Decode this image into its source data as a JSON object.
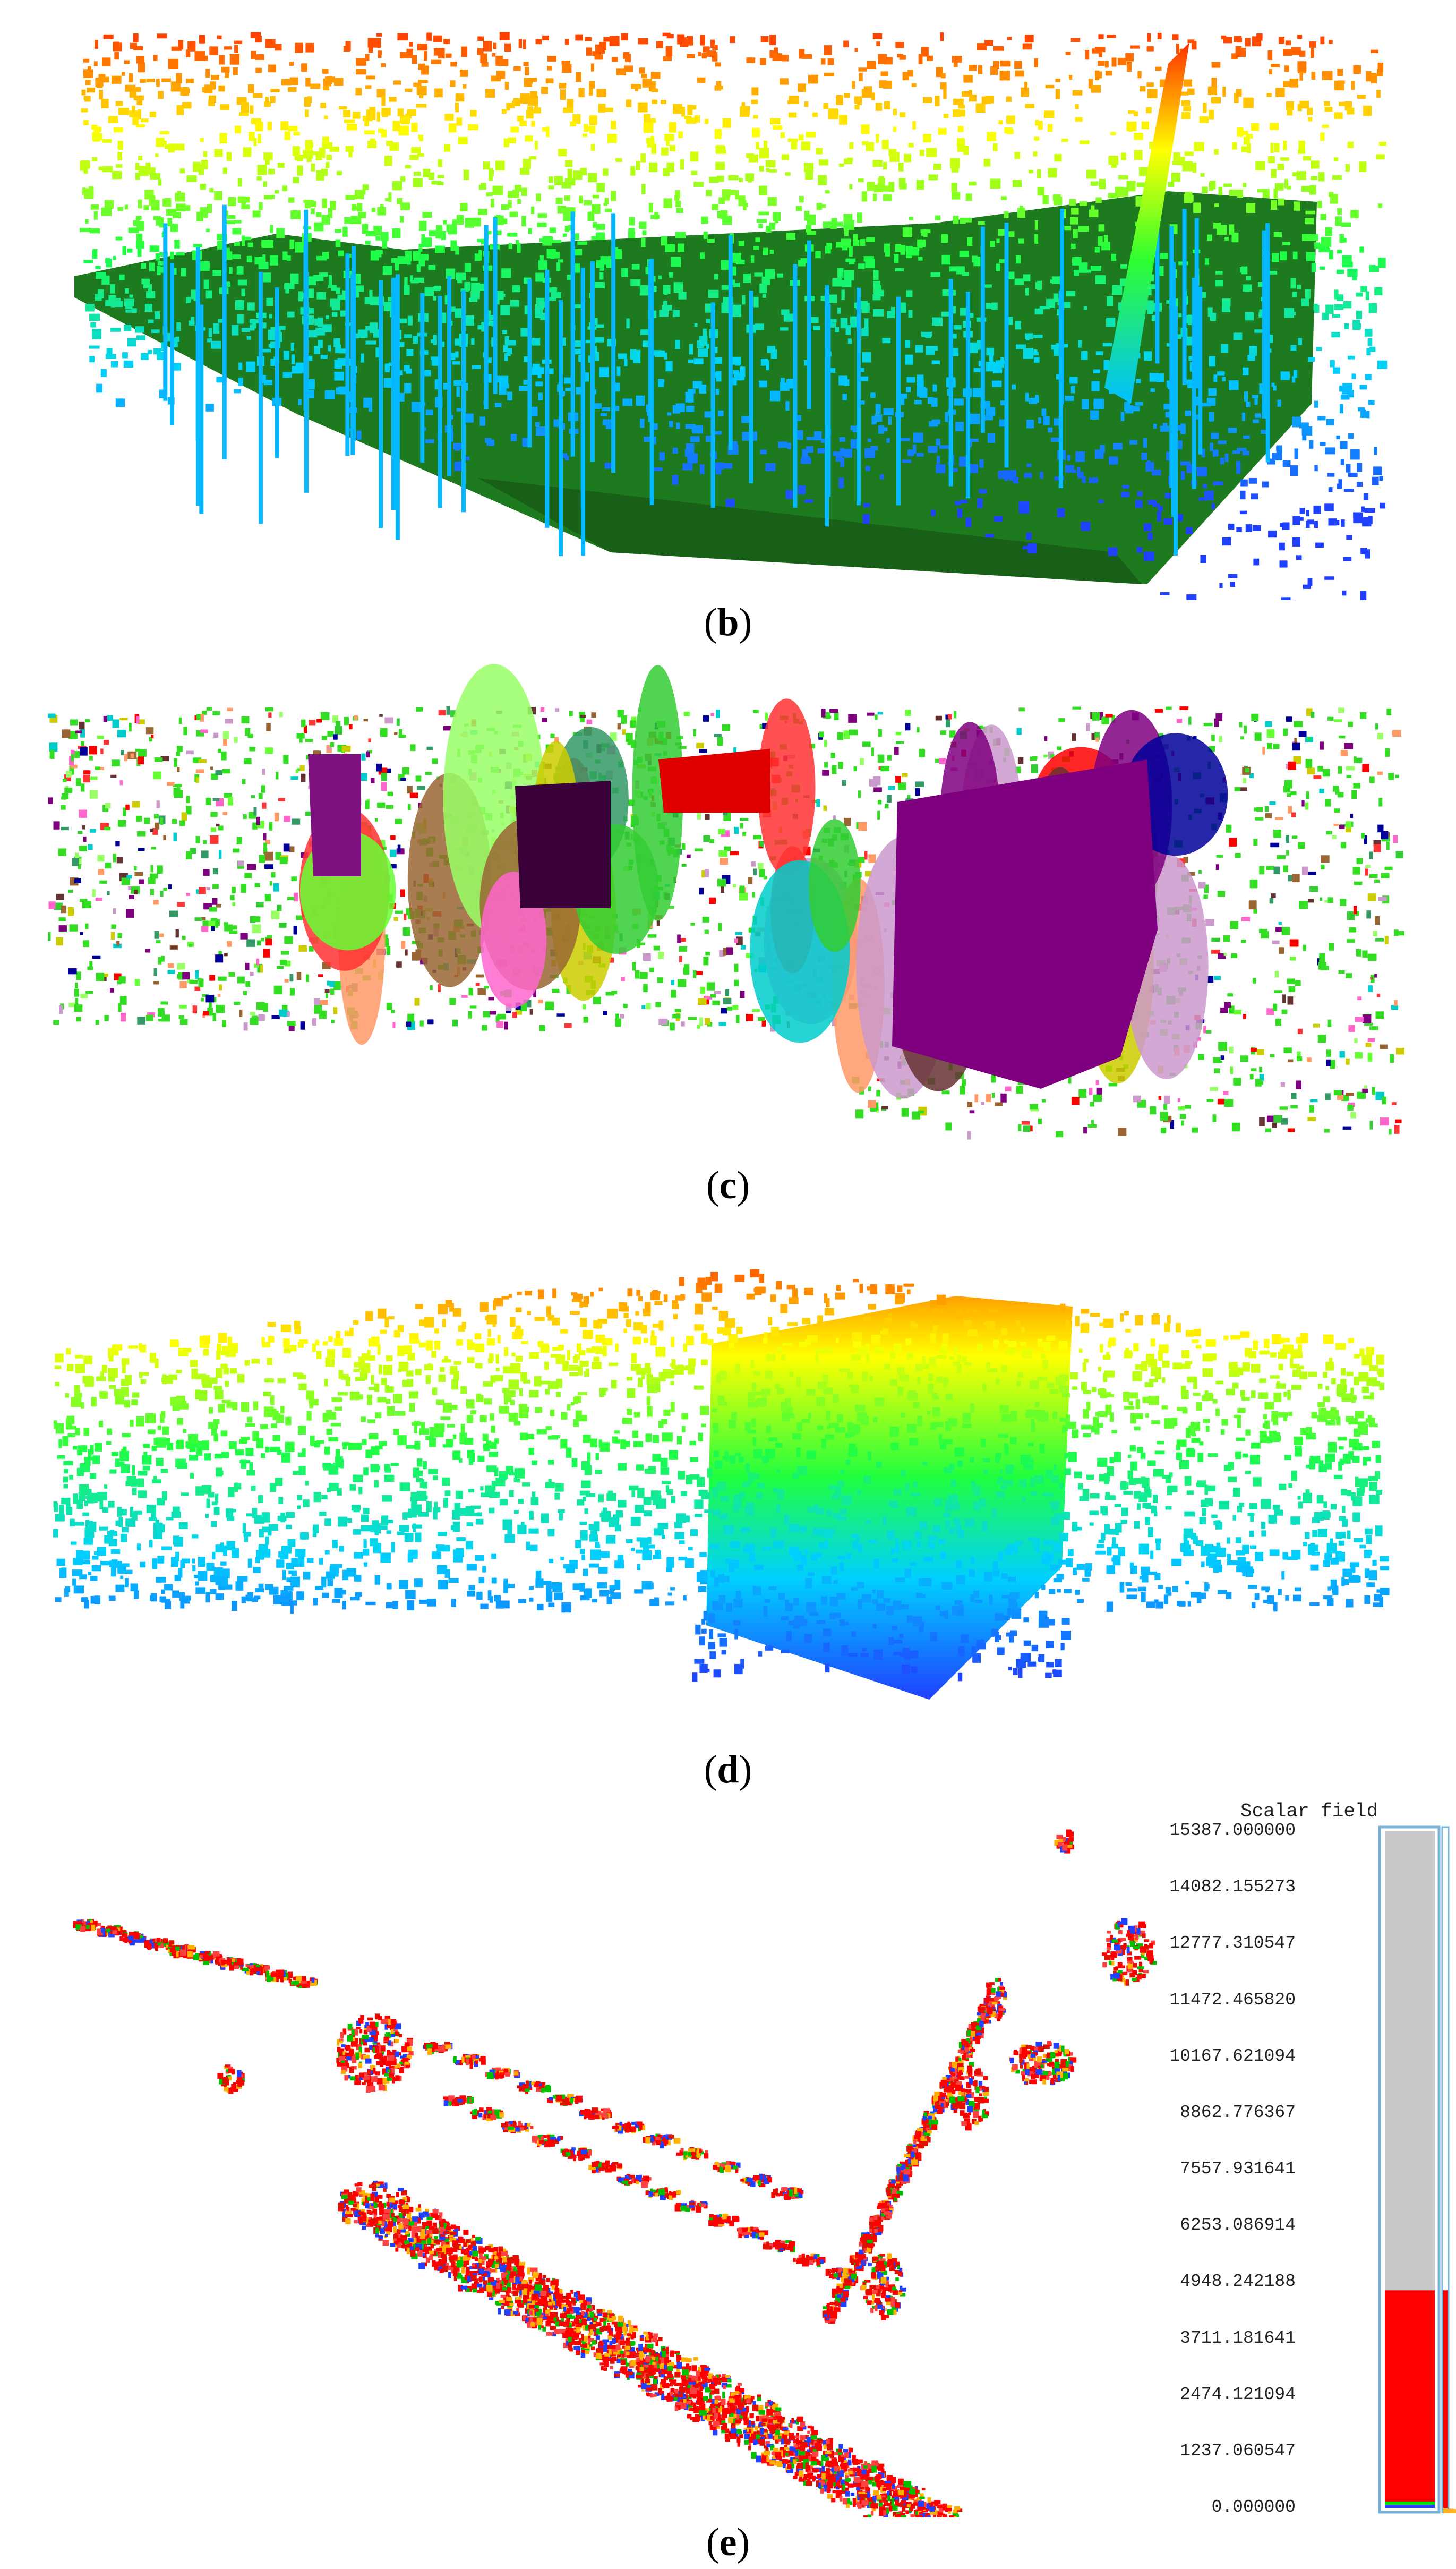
{
  "panels": [
    {
      "id": "b",
      "caption_open": "(",
      "label": "b",
      "caption_close": ")",
      "color_mode": "height-rainbow-with-ground"
    },
    {
      "id": "c",
      "caption_open": "(",
      "label": "c",
      "caption_close": ")",
      "color_mode": "instance-segmentation"
    },
    {
      "id": "d",
      "caption_open": "(",
      "label": "d",
      "caption_close": ")",
      "color_mode": "height-rainbow"
    },
    {
      "id": "e",
      "caption_open": "(",
      "label": "e",
      "caption_close": ")",
      "color_mode": "scalar-field-heat"
    }
  ],
  "scalar_field": {
    "title": "Scalar field",
    "ticks": [
      "15387.000000",
      "14082.155273",
      "12777.310547",
      "11472.465820",
      "10167.621094",
      "8862.776367",
      "7557.931641",
      "6253.086914",
      "4948.242188",
      "3711.181641",
      "2474.121094",
      "1237.060547",
      "0.000000"
    ],
    "range": [
      0,
      15387
    ],
    "red_band_top": 4948.242188,
    "colors": {
      "grey": "#c8c8c8",
      "red": "#ff0000",
      "green": "#00e000",
      "blue": "#2a40ff",
      "frame": "#7ab4d8"
    }
  },
  "colors": {
    "ground_green": "#1e7a1e",
    "instance_palette": [
      "#7f007f",
      "#ff0000",
      "#cc99cc",
      "#33cc33",
      "#66ff33",
      "#ff66cc",
      "#996633",
      "#339966",
      "#00cccc",
      "#ff9966",
      "#cccc00",
      "#663333",
      "#000099",
      "#ff3333",
      "#99ff66"
    ]
  }
}
